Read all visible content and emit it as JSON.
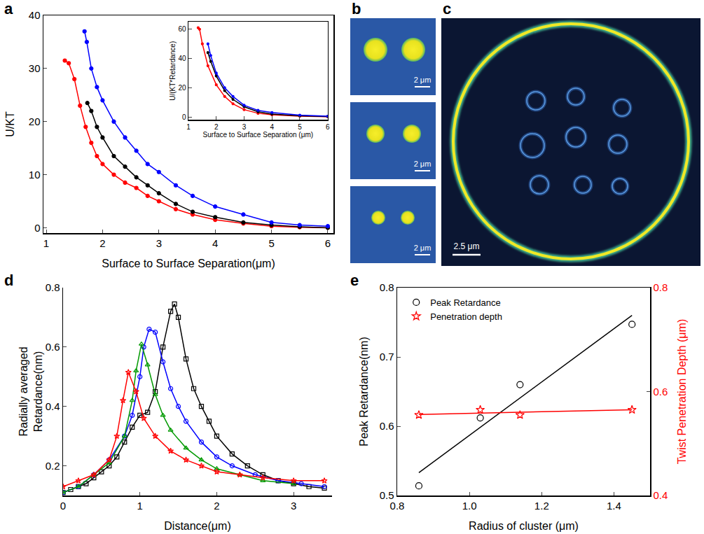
{
  "chart_data": [
    {
      "panel": "a",
      "type": "line",
      "xlabel": "Surface to Surface Separation(μm)",
      "ylabel": "U/KT",
      "xlim": [
        0.95,
        6.1
      ],
      "ylim": [
        -1,
        40
      ],
      "xticks": [
        1,
        2,
        3,
        4,
        5,
        6
      ],
      "yticks": [
        0,
        10,
        20,
        30,
        40
      ],
      "grid": false,
      "series": [
        {
          "color": "#ff0000",
          "marker": "circle",
          "line_style": "solid",
          "x": [
            1.33,
            1.4,
            1.5,
            1.6,
            1.7,
            1.8,
            1.9,
            2.0,
            2.2,
            2.4,
            2.6,
            2.8,
            3.0,
            3.3,
            3.6,
            4.0,
            4.5,
            5.0,
            5.5,
            6.0
          ],
          "values": [
            31.5,
            31,
            28,
            23,
            19,
            16,
            13.5,
            12,
            10,
            8.5,
            7.5,
            6,
            5,
            3.5,
            2.5,
            1.5,
            0.8,
            0.3,
            0.1,
            0
          ]
        },
        {
          "color": "#000000",
          "marker": "circle",
          "line_style": "solid",
          "x": [
            1.73,
            1.8,
            1.9,
            2.0,
            2.2,
            2.4,
            2.6,
            2.8,
            3.0,
            3.3,
            3.6,
            4.0,
            4.5,
            5.0,
            5.5,
            6.0
          ],
          "values": [
            23.5,
            22,
            19,
            17,
            13.5,
            11.5,
            9.5,
            8,
            6.5,
            4.5,
            3,
            2,
            1,
            0.5,
            0.2,
            0
          ]
        },
        {
          "color": "#0000ff",
          "marker": "circle",
          "line_style": "solid",
          "x": [
            1.68,
            1.72,
            1.8,
            1.9,
            2.0,
            2.2,
            2.4,
            2.6,
            2.8,
            3.0,
            3.3,
            3.6,
            4.0,
            4.5,
            5.0,
            5.5,
            6.0
          ],
          "values": [
            37,
            35,
            30,
            26.5,
            24,
            20,
            17,
            14.5,
            12,
            10.5,
            8,
            6,
            4,
            2.5,
            1,
            0.5,
            0.3
          ]
        }
      ],
      "inset": {
        "type": "line",
        "xlabel": "Surface to Surface Separation (μm)",
        "ylabel": "U/(KT*Retardance)",
        "xlim": [
          1,
          6
        ],
        "ylim": [
          -2,
          65
        ],
        "xticks": [
          1,
          2,
          3,
          4,
          5,
          6
        ],
        "yticks": [
          0,
          20,
          40,
          60
        ],
        "grid": false,
        "series": [
          {
            "color": "#ff0000",
            "marker": "circle",
            "line_style": "solid",
            "x": [
              1.35,
              1.4,
              1.5,
              1.7,
              2.0,
              2.3,
              2.6,
              3.0,
              3.5,
              4.0,
              5.0,
              6.0
            ],
            "values": [
              61,
              60,
              50,
              35,
              22,
              14,
              9,
              5,
              2.5,
              1.5,
              0.5,
              0.2
            ]
          },
          {
            "color": "#000000",
            "marker": "circle",
            "line_style": "solid",
            "x": [
              1.7,
              1.8,
              2.0,
              2.3,
              2.6,
              3.0,
              3.5,
              4.0,
              5.0,
              6.0
            ],
            "values": [
              44,
              38,
              28,
              18,
              12,
              7,
              3.5,
              2,
              0.8,
              0.3
            ]
          },
          {
            "color": "#0000ff",
            "marker": "circle",
            "line_style": "solid",
            "x": [
              1.7,
              1.8,
              2.0,
              2.3,
              2.6,
              3.0,
              3.5,
              4.0,
              5.0,
              6.0
            ],
            "values": [
              50,
              42,
              30,
              20,
              14,
              8,
              4.5,
              3,
              1.2,
              0.5
            ]
          }
        ]
      }
    },
    {
      "panel": "d",
      "type": "line",
      "xlabel": "Distance(μm)",
      "ylabel": "Radially averaged Retardance(nm)",
      "xlim": [
        0,
        3.5
      ],
      "ylim": [
        0.1,
        0.8
      ],
      "xticks": [
        0,
        1,
        2,
        3
      ],
      "yticks": [
        0.2,
        0.4,
        0.6,
        0.8
      ],
      "grid": false,
      "series": [
        {
          "color": "#000000",
          "marker": "square-open",
          "line_style": "solid",
          "x": [
            0,
            0.1,
            0.2,
            0.3,
            0.4,
            0.5,
            0.6,
            0.7,
            0.8,
            0.9,
            1.0,
            1.1,
            1.2,
            1.3,
            1.4,
            1.45,
            1.5,
            1.6,
            1.7,
            1.8,
            1.9,
            2.0,
            2.2,
            2.4,
            2.6,
            2.8,
            3.0,
            3.2,
            3.4
          ],
          "values": [
            0.11,
            0.12,
            0.13,
            0.14,
            0.16,
            0.18,
            0.2,
            0.23,
            0.28,
            0.33,
            0.37,
            0.38,
            0.45,
            0.6,
            0.72,
            0.745,
            0.7,
            0.56,
            0.46,
            0.4,
            0.35,
            0.3,
            0.24,
            0.2,
            0.17,
            0.15,
            0.14,
            0.13,
            0.125
          ]
        },
        {
          "color": "#0000ff",
          "marker": "circle-open",
          "line_style": "solid",
          "x": [
            0,
            0.2,
            0.4,
            0.6,
            0.8,
            0.9,
            1.0,
            1.05,
            1.12,
            1.2,
            1.3,
            1.4,
            1.5,
            1.6,
            1.8,
            2.0,
            2.2,
            2.5,
            2.8,
            3.1,
            3.4
          ],
          "values": [
            0.11,
            0.13,
            0.17,
            0.22,
            0.3,
            0.37,
            0.5,
            0.6,
            0.66,
            0.65,
            0.55,
            0.46,
            0.4,
            0.35,
            0.28,
            0.23,
            0.2,
            0.17,
            0.15,
            0.14,
            0.13
          ]
        },
        {
          "color": "#009900",
          "marker": "triangle-up-open",
          "line_style": "solid",
          "x": [
            0,
            0.2,
            0.4,
            0.6,
            0.8,
            0.9,
            0.95,
            1.02,
            1.1,
            1.2,
            1.3,
            1.4,
            1.6,
            1.8,
            2.0,
            2.3,
            2.6,
            3.0
          ],
          "values": [
            0.11,
            0.13,
            0.17,
            0.21,
            0.3,
            0.42,
            0.52,
            0.61,
            0.54,
            0.44,
            0.37,
            0.32,
            0.26,
            0.22,
            0.19,
            0.17,
            0.15,
            0.14
          ]
        },
        {
          "color": "#ff0000",
          "marker": "star-open",
          "line_style": "solid",
          "x": [
            0,
            0.2,
            0.4,
            0.6,
            0.7,
            0.78,
            0.85,
            0.95,
            1.05,
            1.2,
            1.4,
            1.6,
            1.8,
            2.0,
            2.3,
            2.6,
            3.0,
            3.4
          ],
          "values": [
            0.13,
            0.15,
            0.17,
            0.22,
            0.3,
            0.42,
            0.515,
            0.45,
            0.36,
            0.3,
            0.25,
            0.22,
            0.2,
            0.18,
            0.17,
            0.16,
            0.15,
            0.15
          ]
        }
      ]
    },
    {
      "panel": "e",
      "type": "scatter",
      "xlabel": "Radius of cluster (μm)",
      "ylabel": "Peak Retardance(nm)",
      "y2label": "Twist Penetration Depth (μm)",
      "xlim": [
        0.8,
        1.5
      ],
      "ylim": [
        0.5,
        0.8
      ],
      "y2lim": [
        0.4,
        0.8
      ],
      "xticks": [
        0.8,
        {
          "value": 1,
          "label": "1.0"
        },
        1.2,
        1.4
      ],
      "yticks": [
        0.5,
        0.6,
        0.7,
        0.8
      ],
      "y2ticks": [
        0.4,
        0.6,
        0.8
      ],
      "grid": false,
      "legend": "upper left",
      "series": [
        {
          "name": "Peak Retardance",
          "type": "scatter",
          "color": "#000000",
          "marker": "circle-open",
          "x": [
            0.86,
            1.03,
            1.14,
            1.45
          ],
          "values": [
            0.514,
            0.612,
            0.66,
            0.747
          ]
        },
        {
          "type": "line",
          "color": "#000000",
          "line_style": "solid",
          "x": [
            0.86,
            1.45
          ],
          "values": [
            0.533,
            0.76
          ]
        },
        {
          "name": "Penetration depth",
          "type": "scatter",
          "color": "#ff0000",
          "marker": "star-open",
          "axis": "y2",
          "x": [
            0.86,
            1.03,
            1.14,
            1.45
          ],
          "values": [
            0.555,
            0.565,
            0.555,
            0.565
          ]
        },
        {
          "type": "line",
          "color": "#ff0000",
          "line_style": "solid",
          "axis": "y2",
          "x": [
            0.86,
            1.45
          ],
          "values": [
            0.556,
            0.565
          ]
        }
      ]
    }
  ],
  "images": {
    "b": {
      "panel": "b",
      "frames": [
        {
          "scale_bar": "2 μm"
        },
        {
          "scale_bar": "2 μm"
        },
        {
          "scale_bar": "2 μm"
        }
      ]
    },
    "c": {
      "panel": "c",
      "scale_bar": "2.5 μm"
    }
  }
}
